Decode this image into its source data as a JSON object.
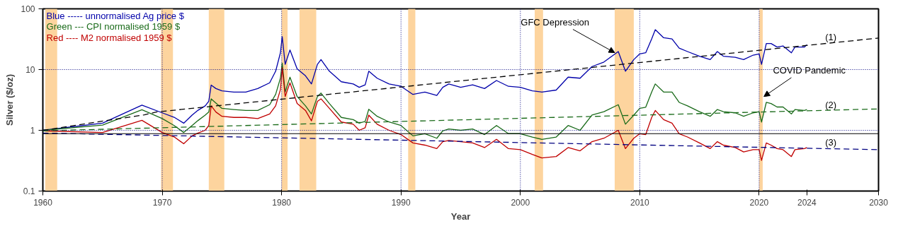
{
  "chart_data": {
    "type": "line",
    "xlabel": "Year",
    "ylabel": "Silver ($/oz)",
    "log": "y",
    "grid": false,
    "legend": "top left",
    "xlim": [
      1960,
      2030
    ],
    "xticks": [
      1960,
      1970,
      1980,
      1990,
      2000,
      2010,
      2020,
      2024,
      2030
    ],
    "ylim": [
      0.1,
      100
    ],
    "yticks": [
      0.1,
      1,
      10,
      100
    ],
    "x": [
      1960,
      1965,
      1968.3,
      1970,
      1971,
      1971.8,
      1972.5,
      1973,
      1973.6,
      1973.9,
      1974.1,
      1974.5,
      1975,
      1976,
      1977,
      1978,
      1979,
      1979.5,
      1979.9,
      1980.05,
      1980.3,
      1980.7,
      1981.3,
      1982,
      1982.5,
      1983,
      1983.3,
      1984,
      1985,
      1986,
      1986.5,
      1987,
      1987.3,
      1988,
      1989,
      1990,
      1991,
      1992,
      1993,
      1993.5,
      1994,
      1995,
      1996,
      1997,
      1998,
      1999,
      2000,
      2001,
      2001.8,
      2003,
      2004,
      2005,
      2006,
      2007,
      2008.2,
      2008.8,
      2009.5,
      2010,
      2010.5,
      2011,
      2011.3,
      2012,
      2012.7,
      2013.3,
      2014,
      2015,
      2015.9,
      2016.5,
      2017,
      2018,
      2018.7,
      2019.5,
      2020,
      2020.2,
      2020.6,
      2021,
      2021.5,
      2022,
      2022.7,
      2023,
      2023.8,
      2024
    ],
    "series": [
      {
        "name": "Blue ----- unnormalised Ag price $",
        "color": "#0000aa",
        "values": [
          1.0,
          1.31,
          2.59,
          1.94,
          1.64,
          1.31,
          1.78,
          2.14,
          2.53,
          3.0,
          5.56,
          4.87,
          4.47,
          4.27,
          4.27,
          4.87,
          6.05,
          9.4,
          18.9,
          34.9,
          12.2,
          21,
          10.3,
          7.9,
          5.8,
          12.2,
          14.6,
          9.4,
          6.3,
          5.8,
          5.1,
          5.6,
          9.4,
          7.2,
          5.8,
          5.3,
          3.9,
          4.27,
          3.75,
          5.1,
          5.8,
          5.1,
          5.6,
          4.87,
          6.6,
          5.3,
          5.1,
          4.47,
          4.27,
          4.6,
          7.5,
          7.2,
          11.2,
          13.3,
          19.8,
          9.4,
          14.6,
          18.1,
          18.9,
          32,
          45.4,
          33.4,
          32,
          22.5,
          19.8,
          16.6,
          14.6,
          19.8,
          16.6,
          15.9,
          14.6,
          17.3,
          18.1,
          12.2,
          26.8,
          26.8,
          23.5,
          24.5,
          18.9,
          23.5,
          23.5,
          25.6
        ]
      },
      {
        "name": "Green --- CPI normalised 1959 $",
        "color": "#1a6b1a",
        "values": [
          1.0,
          1.22,
          2.18,
          1.56,
          1.2,
          0.92,
          1.2,
          1.45,
          1.78,
          2.0,
          3.3,
          2.8,
          2.3,
          2.2,
          2.12,
          2.12,
          2.64,
          3.9,
          7.2,
          12.8,
          4.27,
          7.5,
          3.6,
          2.53,
          1.86,
          3.6,
          4.1,
          2.76,
          1.63,
          1.5,
          1.31,
          1.4,
          2.22,
          1.7,
          1.37,
          1.2,
          0.81,
          0.88,
          0.74,
          0.98,
          1.05,
          1.0,
          1.05,
          0.85,
          1.2,
          0.88,
          0.88,
          0.775,
          0.71,
          0.775,
          1.2,
          1.0,
          1.78,
          2.03,
          2.64,
          1.26,
          1.78,
          2.3,
          2.4,
          4.27,
          5.8,
          4.27,
          4.27,
          2.88,
          2.53,
          2.03,
          1.7,
          2.2,
          2.03,
          1.94,
          1.7,
          1.94,
          2.03,
          1.37,
          2.88,
          2.76,
          2.42,
          2.42,
          1.86,
          2.2,
          2.12,
          2.2
        ]
      },
      {
        "name": "Red ---- M2 normalised 1959 $",
        "color": "#c00000",
        "values": [
          0.98,
          0.92,
          1.46,
          0.92,
          0.78,
          0.6,
          0.81,
          0.9,
          1.0,
          1.2,
          2.53,
          2.0,
          1.7,
          1.63,
          1.63,
          1.56,
          1.86,
          2.53,
          4.67,
          10.7,
          3.6,
          6.05,
          2.76,
          2.12,
          1.43,
          3.0,
          3.3,
          2.3,
          1.37,
          1.26,
          1.0,
          1.1,
          1.78,
          1.26,
          1.0,
          0.85,
          0.62,
          0.57,
          0.5,
          0.65,
          0.68,
          0.65,
          0.62,
          0.52,
          0.71,
          0.5,
          0.48,
          0.4,
          0.35,
          0.37,
          0.52,
          0.46,
          0.65,
          0.74,
          1.0,
          0.5,
          0.74,
          0.88,
          0.85,
          1.63,
          2.12,
          1.5,
          1.31,
          0.88,
          0.775,
          0.62,
          0.5,
          0.65,
          0.57,
          0.52,
          0.44,
          0.48,
          0.48,
          0.32,
          0.62,
          0.57,
          0.5,
          0.48,
          0.37,
          0.48,
          0.5,
          0.52
        ]
      },
      {
        "type": "line",
        "color": "#000000",
        "line_style": "dashed",
        "x": [
          1960,
          1968.5,
          1969.5,
          2030
        ],
        "values": [
          1.0,
          1.8,
          2.0,
          33
        ]
      },
      {
        "type": "line",
        "color": "#1a6b1a",
        "line_style": "dashed",
        "x": [
          1960,
          2030
        ],
        "values": [
          0.98,
          2.25
        ]
      },
      {
        "type": "line",
        "color": "#000080",
        "line_style": "dashed",
        "x": [
          1960,
          2030
        ],
        "values": [
          0.9,
          0.48
        ]
      }
    ],
    "annotations": [
      {
        "text": "GFC Depression",
        "x": 2007.9,
        "y": 19
      },
      {
        "text": "COVID Pandemic",
        "x": 2020.4,
        "y": 3.6
      },
      {
        "text": "(1)",
        "x": 2026,
        "y": 27
      },
      {
        "text": "(2)",
        "x": 2026,
        "y": 2.1
      },
      {
        "text": "(3)",
        "x": 2026,
        "y": 0.5
      }
    ],
    "ref_lines": [
      {
        "axis": "y",
        "value": 1,
        "line_style": "dotted",
        "color": "#000080"
      },
      {
        "axis": "y",
        "value": 10,
        "line_style": "dotted",
        "color": "#000080"
      },
      {
        "axis": "y",
        "value": 0.88,
        "line_style": "solid",
        "color": "#000000"
      },
      {
        "axis": "x",
        "value": 1970,
        "line_style": "dotted",
        "color": "#000080"
      },
      {
        "axis": "x",
        "value": 1980,
        "line_style": "dotted",
        "color": "#000080"
      },
      {
        "axis": "x",
        "value": 1990,
        "line_style": "dotted",
        "color": "#000080"
      },
      {
        "axis": "x",
        "value": 2000,
        "line_style": "dotted",
        "color": "#000080"
      },
      {
        "axis": "x",
        "value": 2010,
        "line_style": "dotted",
        "color": "#000080"
      },
      {
        "axis": "x",
        "value": 2020,
        "line_style": "dotted",
        "color": "#000080"
      }
    ],
    "bands": [
      {
        "axis": "x",
        "from": 1960.2,
        "to": 1961.2,
        "color": "#fdd49e"
      },
      {
        "axis": "x",
        "from": 1969.9,
        "to": 1970.9,
        "color": "#fdd49e"
      },
      {
        "axis": "x",
        "from": 1973.9,
        "to": 1975.2,
        "color": "#fdd49e"
      },
      {
        "axis": "x",
        "from": 1980.0,
        "to": 1980.5,
        "color": "#fdd49e"
      },
      {
        "axis": "x",
        "from": 1981.5,
        "to": 1982.9,
        "color": "#fdd49e"
      },
      {
        "axis": "x",
        "from": 1990.6,
        "to": 1991.2,
        "color": "#fdd49e"
      },
      {
        "axis": "x",
        "from": 2001.2,
        "to": 2001.9,
        "color": "#fdd49e"
      },
      {
        "axis": "x",
        "from": 2007.9,
        "to": 2009.5,
        "color": "#fdd49e"
      },
      {
        "axis": "x",
        "from": 2020.0,
        "to": 2020.3,
        "color": "#fdd49e"
      }
    ]
  }
}
